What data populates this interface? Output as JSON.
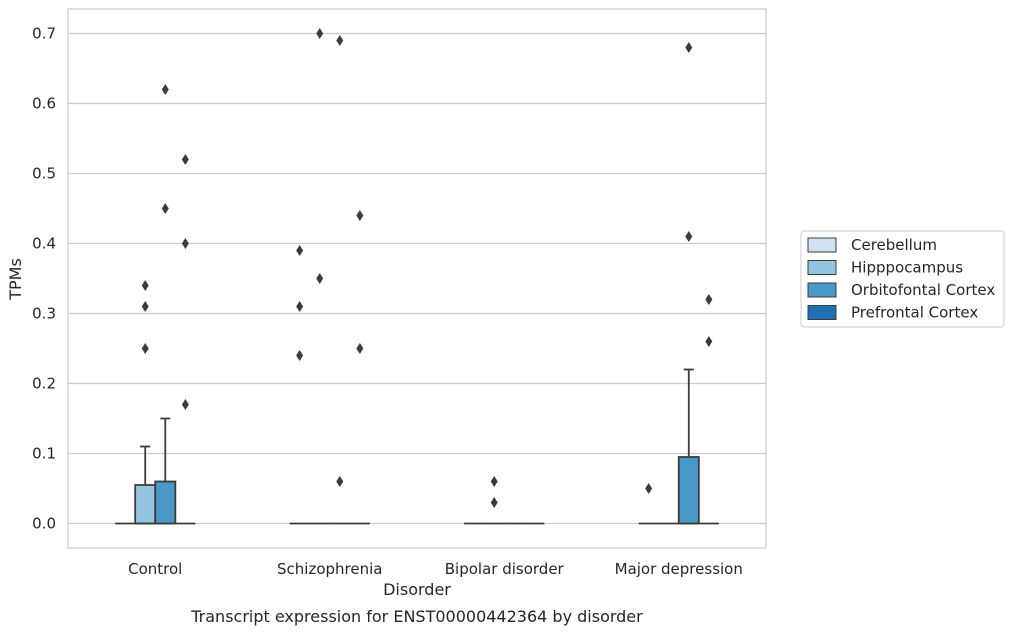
{
  "chart_data": {
    "type": "box",
    "caption": "Transcript expression for ENST00000442364 by disorder",
    "xlabel": "Disorder",
    "ylabel": "TPMs",
    "ylim": [
      -0.035,
      0.735
    ],
    "yticks": [
      "0.0",
      "0.1",
      "0.2",
      "0.3",
      "0.4",
      "0.5",
      "0.6",
      "0.7"
    ],
    "grid": true,
    "legend_position": "right",
    "categories": [
      "Control",
      "Schizophrenia",
      "Bipolar disorder",
      "Major depression"
    ],
    "series": [
      {
        "name": "Cerebellum",
        "color": "#d0e1f2",
        "boxes": [
          {
            "q1": 0,
            "median": 0,
            "q3": 0,
            "whislo": 0,
            "whishi": 0,
            "fliers": []
          },
          {
            "q1": 0,
            "median": 0,
            "q3": 0,
            "whislo": 0,
            "whishi": 0,
            "fliers": [
              0.39,
              0.31,
              0.24
            ]
          },
          {
            "q1": 0,
            "median": 0,
            "q3": 0,
            "whislo": 0,
            "whishi": 0,
            "fliers": []
          },
          {
            "q1": 0,
            "median": 0,
            "q3": 0,
            "whislo": 0,
            "whishi": 0,
            "fliers": [
              0.05
            ]
          }
        ]
      },
      {
        "name": "Hipppocampus",
        "color": "#94c4df",
        "boxes": [
          {
            "q1": 0,
            "median": 0,
            "q3": 0.055,
            "whislo": 0,
            "whishi": 0.11,
            "fliers": [
              0.34,
              0.31,
              0.25
            ]
          },
          {
            "q1": 0,
            "median": 0,
            "q3": 0,
            "whislo": 0,
            "whishi": 0,
            "fliers": [
              0.7,
              0.35
            ]
          },
          {
            "q1": 0,
            "median": 0,
            "q3": 0,
            "whislo": 0,
            "whishi": 0,
            "fliers": [
              0.06,
              0.03
            ]
          },
          {
            "q1": 0,
            "median": 0,
            "q3": 0,
            "whislo": 0,
            "whishi": 0,
            "fliers": []
          }
        ]
      },
      {
        "name": "Orbitofontal Cortex",
        "color": "#4a98c9",
        "boxes": [
          {
            "q1": 0,
            "median": 0,
            "q3": 0.06,
            "whislo": 0,
            "whishi": 0.15,
            "fliers": [
              0.62,
              0.45
            ]
          },
          {
            "q1": 0,
            "median": 0,
            "q3": 0,
            "whislo": 0,
            "whishi": 0,
            "fliers": [
              0.69,
              0.06
            ]
          },
          {
            "q1": 0,
            "median": 0,
            "q3": 0,
            "whislo": 0,
            "whishi": 0,
            "fliers": []
          },
          {
            "q1": 0,
            "median": 0,
            "q3": 0.095,
            "whislo": 0,
            "whishi": 0.22,
            "fliers": [
              0.68,
              0.41
            ]
          }
        ]
      },
      {
        "name": "Prefrontal Cortex",
        "color": "#2070b4",
        "boxes": [
          {
            "q1": 0,
            "median": 0,
            "q3": 0,
            "whislo": 0,
            "whishi": 0,
            "fliers": [
              0.52,
              0.4,
              0.17
            ]
          },
          {
            "q1": 0,
            "median": 0,
            "q3": 0,
            "whislo": 0,
            "whishi": 0,
            "fliers": [
              0.44,
              0.25
            ]
          },
          {
            "q1": 0,
            "median": 0,
            "q3": 0,
            "whislo": 0,
            "whishi": 0,
            "fliers": []
          },
          {
            "q1": 0,
            "median": 0,
            "q3": 0,
            "whislo": 0,
            "whishi": 0,
            "fliers": [
              0.32,
              0.26
            ]
          }
        ]
      }
    ]
  }
}
